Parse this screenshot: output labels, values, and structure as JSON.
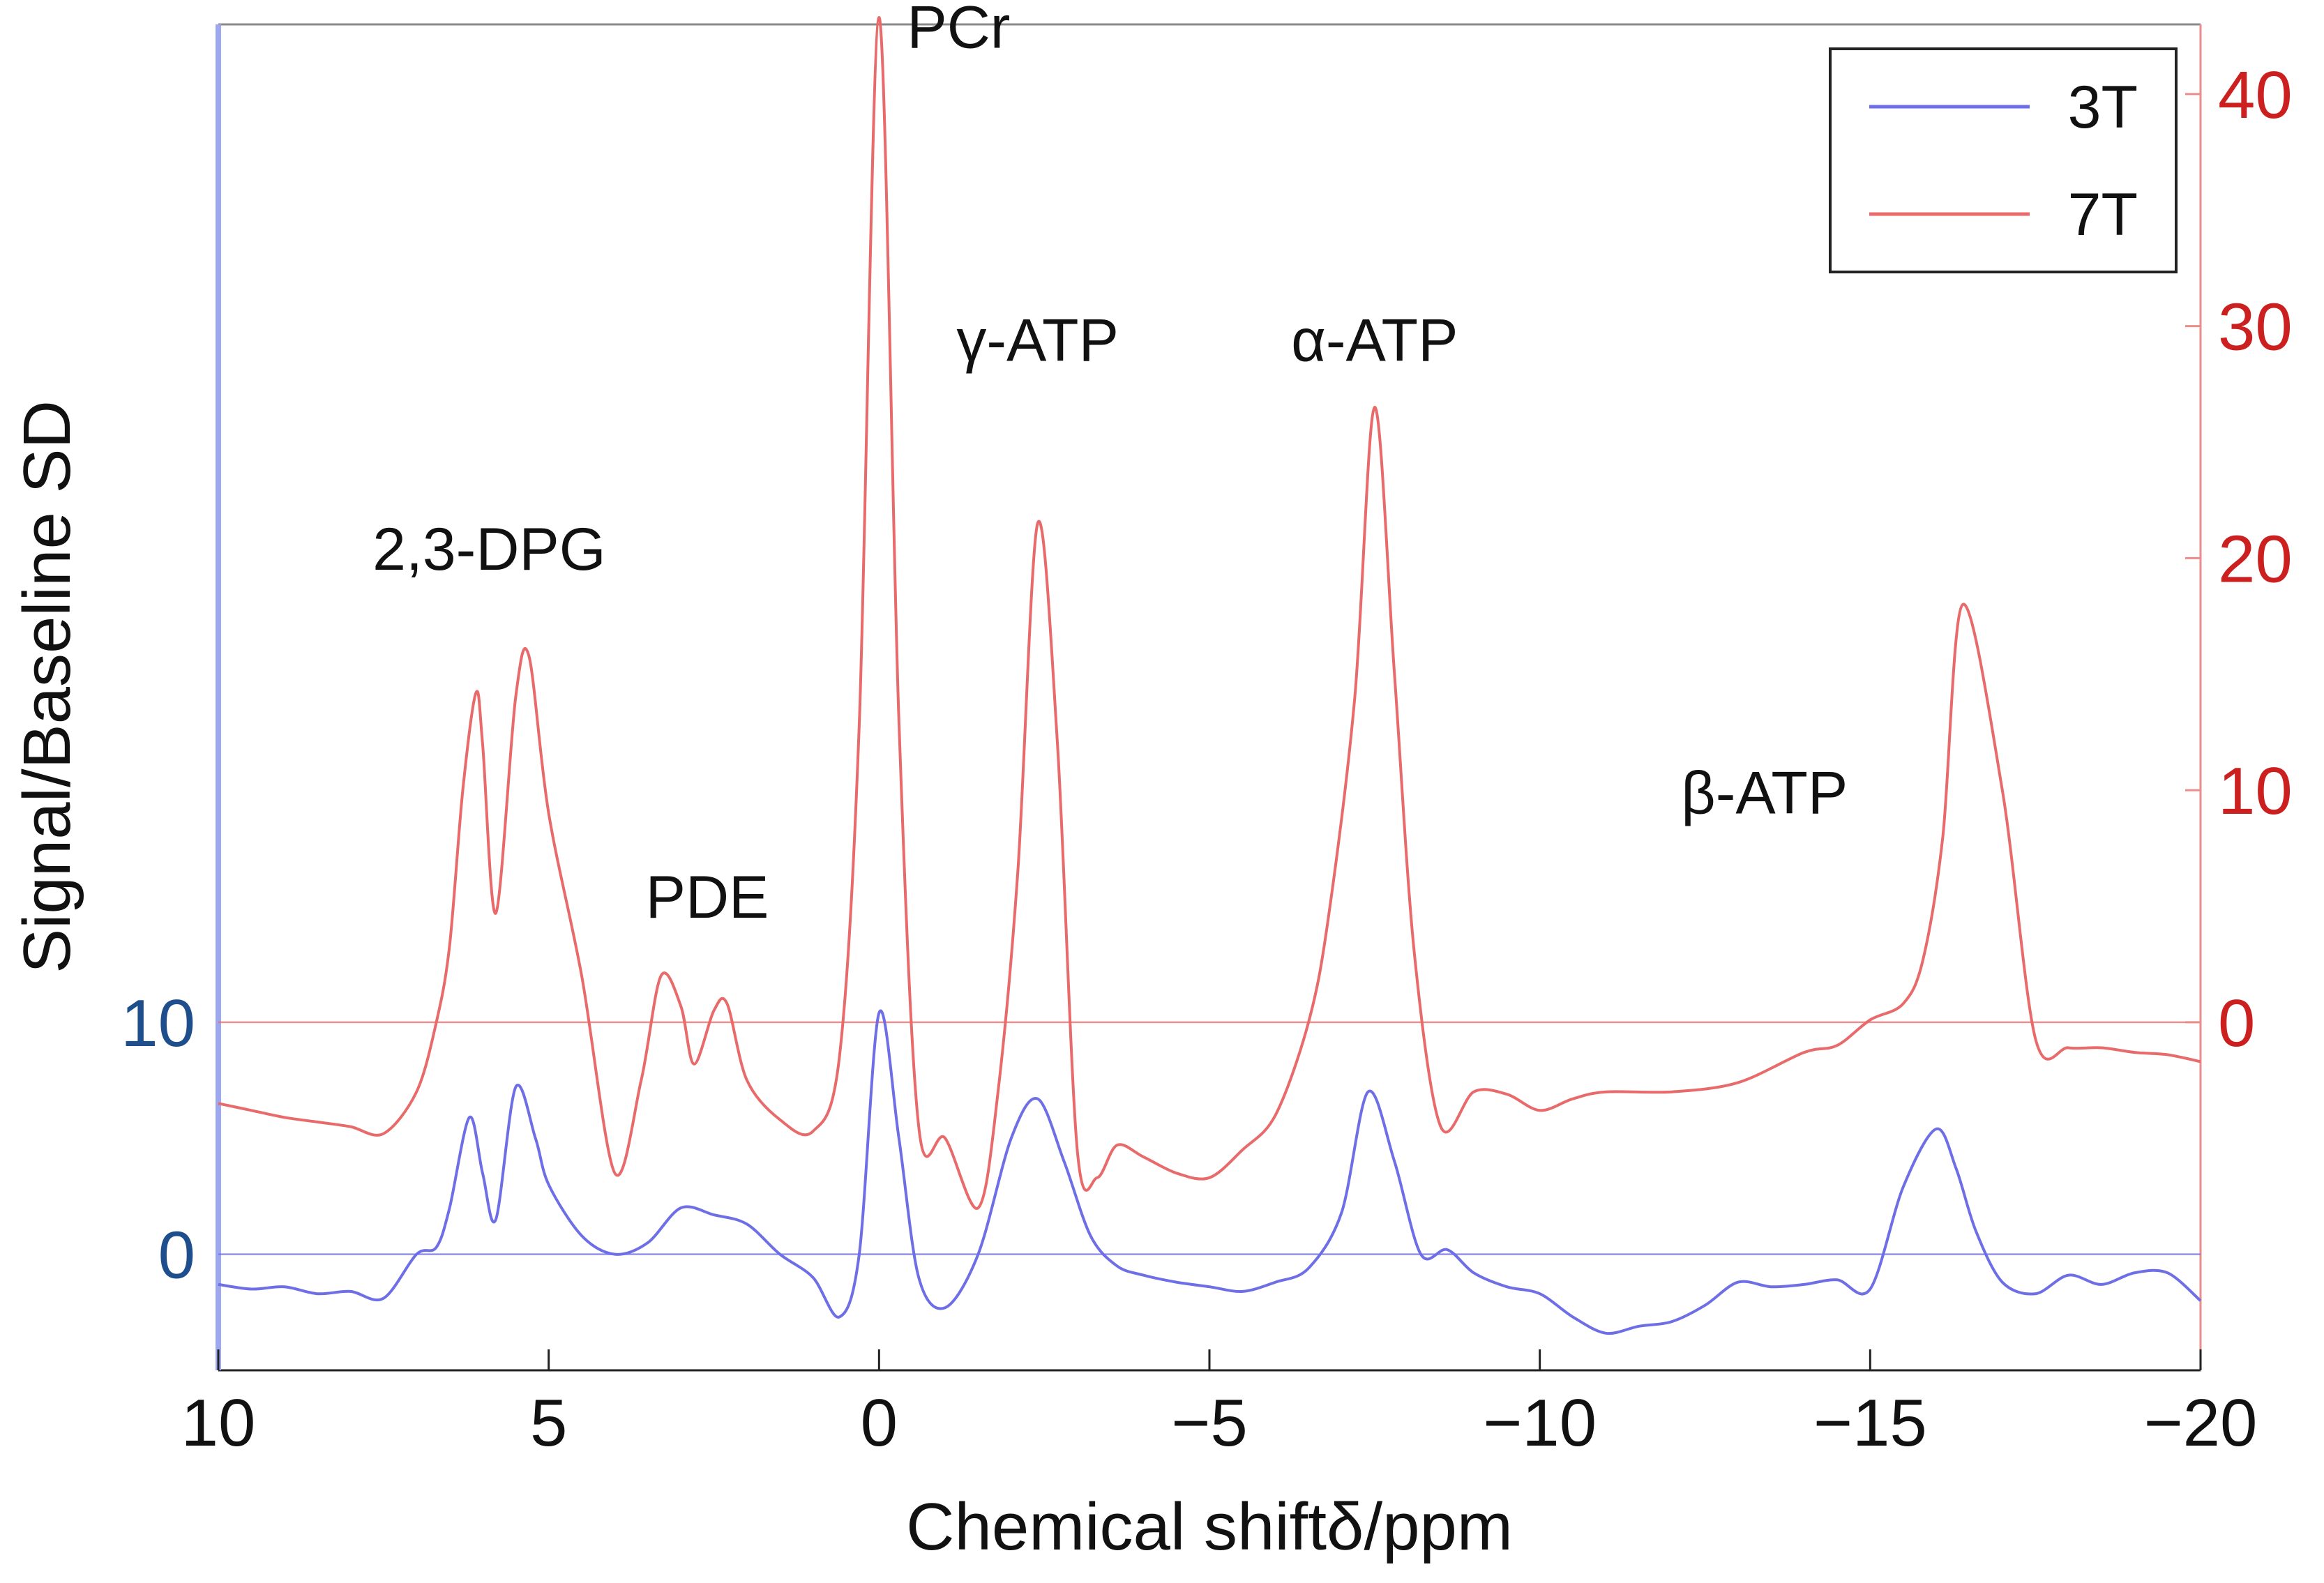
{
  "chart_data": {
    "type": "line",
    "xlabel": "Chemical shiftδ/ppm",
    "ylabel": "Signal/Baseline SD",
    "xlim": [
      10,
      -20
    ],
    "x_ticks": [
      {
        "value": 10,
        "label": "10"
      },
      {
        "value": 5,
        "label": "5"
      },
      {
        "value": 0,
        "label": "0"
      },
      {
        "value": -5,
        "label": "−5"
      },
      {
        "value": -10,
        "label": "−10"
      },
      {
        "value": -15,
        "label": "−15"
      },
      {
        "value": -20,
        "label": "−20"
      }
    ],
    "y_left": {
      "color": "#1f4e8c",
      "axis_color": "#9ea8f0",
      "lim": [
        -5,
        53
      ],
      "ticks": [
        {
          "value": 0,
          "label": "0"
        },
        {
          "value": 10,
          "label": "10"
        }
      ]
    },
    "y_right": {
      "color": "#cc1f1f",
      "axis_color": "#ee8c8c",
      "lim": [
        -15,
        43
      ],
      "ticks": [
        {
          "value": 0,
          "label": "0"
        },
        {
          "value": 10,
          "label": "10"
        },
        {
          "value": 20,
          "label": "20"
        },
        {
          "value": 30,
          "label": "30"
        },
        {
          "value": 40,
          "label": "40"
        }
      ]
    },
    "legend": {
      "position": "top-right",
      "entries": [
        {
          "name": "3T",
          "color": "#6e6ee6"
        },
        {
          "name": "7T",
          "color": "#e86a6a"
        }
      ]
    },
    "series": [
      {
        "name": "3T",
        "axis": "left",
        "color": "#6e6ee6",
        "baseline_value": 0,
        "x": [
          10,
          9.5,
          9,
          8.5,
          8,
          7.5,
          7,
          6.7,
          6.5,
          6.2,
          6,
          5.8,
          5.5,
          5.2,
          5,
          4.5,
          4,
          3.5,
          3,
          2.5,
          2,
          1.5,
          1,
          0.6,
          0.3,
          0,
          -0.3,
          -0.6,
          -1,
          -1.5,
          -2,
          -2.4,
          -2.8,
          -3.2,
          -3.6,
          -4,
          -4.5,
          -5,
          -5.5,
          -6,
          -6.5,
          -7,
          -7.4,
          -7.8,
          -8.2,
          -8.6,
          -9,
          -9.5,
          -10,
          -10.5,
          -11,
          -11.5,
          -12,
          -12.5,
          -13,
          -13.5,
          -14,
          -14.5,
          -15,
          -15.5,
          -16,
          -16.3,
          -16.6,
          -17,
          -17.5,
          -18,
          -18.5,
          -19,
          -19.5,
          -20
        ],
        "values": [
          -1.3,
          -1.5,
          -1.4,
          -1.7,
          -1.6,
          -1.9,
          0,
          0.3,
          2,
          5.9,
          3.5,
          1.5,
          7.2,
          5,
          3,
          0.8,
          0,
          0.5,
          2,
          1.7,
          1.3,
          0,
          -1,
          -2.7,
          0,
          10.4,
          5,
          -1,
          -2.3,
          0,
          5,
          6.7,
          4,
          0.8,
          -0.5,
          -0.9,
          -1.2,
          -1.4,
          -1.6,
          -1.2,
          -0.6,
          1.8,
          7,
          4,
          0,
          0.2,
          -0.8,
          -1.4,
          -1.7,
          -2.7,
          -3.4,
          -3.1,
          -2.9,
          -2.2,
          -1.2,
          -1.4,
          -1.3,
          -1.1,
          -1.5,
          2.9,
          5.4,
          3.7,
          1,
          -1.2,
          -1.7,
          -0.9,
          -1.3,
          -0.8,
          -0.8,
          -2
        ]
      },
      {
        "name": "7T",
        "axis": "right",
        "color": "#e86a6a",
        "baseline_value": 0,
        "x": [
          10,
          9.5,
          9,
          8.5,
          8,
          7.5,
          7,
          6.7,
          6.5,
          6.3,
          6.1,
          6,
          5.8,
          5.5,
          5.3,
          5,
          4.5,
          4,
          3.6,
          3.3,
          3,
          2.8,
          2.5,
          2.3,
          2,
          1.5,
          1,
          0.6,
          0.3,
          0,
          -0.3,
          -0.6,
          -1,
          -1.5,
          -1.8,
          -2.1,
          -2.4,
          -2.7,
          -3,
          -3.3,
          -3.6,
          -4,
          -4.5,
          -5,
          -5.5,
          -6,
          -6.5,
          -6.8,
          -7.2,
          -7.5,
          -7.8,
          -8.1,
          -8.5,
          -9,
          -9.5,
          -10,
          -10.5,
          -11,
          -12,
          -13,
          -14,
          -14.5,
          -15,
          -15.5,
          -15.8,
          -16.1,
          -16.4,
          -17,
          -17.5,
          -18,
          -18.5,
          -19,
          -19.5,
          -20
        ],
        "values": [
          -3.5,
          -3.8,
          -4.1,
          -4.3,
          -4.5,
          -4.8,
          -3,
          0,
          3.3,
          10,
          14.2,
          12,
          4.7,
          14,
          15.8,
          9,
          2,
          -6.5,
          -2.5,
          2,
          0.7,
          -1.8,
          0.5,
          0.8,
          -2.5,
          -4.2,
          -4.7,
          -1.5,
          12.8,
          43.3,
          13,
          -4.5,
          -5,
          -8,
          -3,
          6.5,
          21.5,
          12,
          -5.5,
          -6.7,
          -5.3,
          -5.8,
          -6.5,
          -6.7,
          -5.5,
          -4,
          0,
          4.5,
          14,
          26.5,
          15,
          3,
          -4.5,
          -3,
          -3.1,
          -3.8,
          -3.3,
          -3,
          -3,
          -2.6,
          -1.3,
          -1,
          0.1,
          0.8,
          2.7,
          8,
          18,
          10,
          -0.7,
          -1.1,
          -1.1,
          -1.3,
          -1.4,
          -1.7
        ]
      }
    ],
    "annotations": [
      {
        "text": "PCr",
        "x": 0,
        "axis": "right",
        "y": 42
      },
      {
        "text": "γ-ATP",
        "x": -2.4,
        "axis": "right",
        "y": 28.5
      },
      {
        "text": "α-ATP",
        "x": -7.5,
        "axis": "right",
        "y": 28.5
      },
      {
        "text": "2,3-DPG",
        "x": 5.9,
        "axis": "right",
        "y": 19.5
      },
      {
        "text": "PDE",
        "x": 2.6,
        "axis": "right",
        "y": 4.5
      },
      {
        "text": "β-ATP",
        "x": -13.4,
        "axis": "right",
        "y": 9
      }
    ]
  }
}
